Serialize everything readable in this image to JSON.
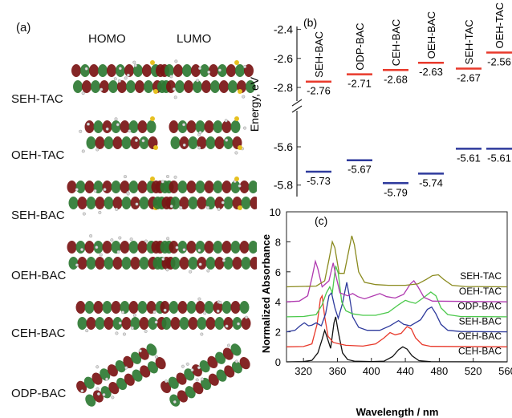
{
  "panel_a": {
    "label": "(a)",
    "col_headers": [
      "HOMO",
      "LUMO"
    ],
    "rows": [
      "SEH-TAC",
      "OEH-TAC",
      "SEH-BAC",
      "OEH-BAC",
      "CEH-BAC",
      "ODP-BAC"
    ]
  },
  "chart_data": [
    {
      "type": "scatter",
      "panel_label": "(b)",
      "ylabel": "Energy, eV",
      "upper_axis": {
        "ylim": [
          -2.85,
          -2.38
        ],
        "ticks": [
          -2.4,
          -2.6,
          -2.8
        ]
      },
      "lower_axis": {
        "ylim": [
          -5.86,
          -5.47
        ],
        "ticks": [
          -5.6,
          -5.8
        ]
      },
      "categories": [
        "SEH-BAC",
        "ODP-BAC",
        "CEH-BAC",
        "OEH-BAC",
        "SEH-TAC",
        "OEH-TAC"
      ],
      "series": [
        {
          "role": "LUMO",
          "color": "#e8392b",
          "values": [
            -2.76,
            -2.71,
            -2.68,
            -2.63,
            -2.67,
            -2.56
          ],
          "labels": [
            "-2.76",
            "-2.71",
            "-2.68",
            "-2.63",
            "-2.67",
            "-2.56"
          ]
        },
        {
          "role": "HOMO",
          "color": "#2e3a9c",
          "values": [
            -5.73,
            -5.67,
            -5.79,
            -5.74,
            -5.61,
            -5.61
          ],
          "labels": [
            "-5.73",
            "-5.67",
            "-5.79",
            "-5.74",
            "-5.61",
            "-5.61"
          ]
        }
      ]
    },
    {
      "type": "line",
      "panel_label": "(c)",
      "xlabel": "Wavelength / nm",
      "ylabel": "Normalized Absorbance",
      "xlim": [
        300,
        560
      ],
      "ylim": [
        0,
        10
      ],
      "xticks": [
        320,
        360,
        400,
        440,
        480,
        520,
        560
      ],
      "yticks": [
        0,
        2,
        4,
        6,
        8,
        10
      ],
      "series": [
        {
          "name": "CEH-BAC",
          "color": "#111111",
          "offset": 0,
          "points": [
            [
              300,
              0
            ],
            [
              320,
              0.02
            ],
            [
              330,
              0.1
            ],
            [
              337,
              0.6
            ],
            [
              342,
              1.5
            ],
            [
              345,
              2.1
            ],
            [
              348,
              1.6
            ],
            [
              352,
              0.9
            ],
            [
              356,
              2.6
            ],
            [
              358,
              3.0
            ],
            [
              361,
              2.0
            ],
            [
              366,
              0.6
            ],
            [
              372,
              0.15
            ],
            [
              380,
              0.05
            ],
            [
              400,
              0.02
            ],
            [
              415,
              0.05
            ],
            [
              425,
              0.35
            ],
            [
              432,
              0.8
            ],
            [
              437,
              1.0
            ],
            [
              442,
              0.85
            ],
            [
              448,
              0.4
            ],
            [
              456,
              0.08
            ],
            [
              470,
              0.01
            ],
            [
              560,
              0
            ]
          ]
        },
        {
          "name": "OEH-BAC",
          "color": "#e8392b",
          "offset": 1,
          "points": [
            [
              300,
              0
            ],
            [
              320,
              0.02
            ],
            [
              330,
              0.2
            ],
            [
              336,
              1.5
            ],
            [
              340,
              3.2
            ],
            [
              342,
              3.4
            ],
            [
              345,
              2.0
            ],
            [
              349,
              0.7
            ],
            [
              355,
              0.3
            ],
            [
              362,
              0.2
            ],
            [
              370,
              0.1
            ],
            [
              390,
              0.05
            ],
            [
              405,
              0.2
            ],
            [
              415,
              0.6
            ],
            [
              422,
              0.95
            ],
            [
              428,
              0.8
            ],
            [
              435,
              0.9
            ],
            [
              442,
              1.35
            ],
            [
              447,
              1.2
            ],
            [
              452,
              0.6
            ],
            [
              460,
              0.15
            ],
            [
              470,
              0.03
            ],
            [
              560,
              0
            ]
          ]
        },
        {
          "name": "SEH-BAC",
          "color": "#2e3a9c",
          "offset": 2,
          "points": [
            [
              300,
              0
            ],
            [
              310,
              0.1
            ],
            [
              316,
              0.4
            ],
            [
              321,
              0.6
            ],
            [
              326,
              0.4
            ],
            [
              330,
              0.45
            ],
            [
              335,
              0.6
            ],
            [
              341,
              0.4
            ],
            [
              346,
              1.2
            ],
            [
              350,
              2.4
            ],
            [
              353,
              2.6
            ],
            [
              357,
              1.6
            ],
            [
              361,
              0.9
            ],
            [
              366,
              1.9
            ],
            [
              371,
              3.3
            ],
            [
              374,
              2.4
            ],
            [
              378,
              1.0
            ],
            [
              385,
              0.3
            ],
            [
              395,
              0.1
            ],
            [
              410,
              0.1
            ],
            [
              422,
              0.4
            ],
            [
              432,
              0.75
            ],
            [
              438,
              0.5
            ],
            [
              446,
              0.4
            ],
            [
              458,
              0.8
            ],
            [
              466,
              1.5
            ],
            [
              471,
              1.65
            ],
            [
              476,
              1.2
            ],
            [
              482,
              0.5
            ],
            [
              490,
              0.1
            ],
            [
              505,
              0.02
            ],
            [
              560,
              0
            ]
          ]
        },
        {
          "name": "ODP-BAC",
          "color": "#4cc94c",
          "offset": 3,
          "points": [
            [
              300,
              0
            ],
            [
              320,
              0.02
            ],
            [
              335,
              0.15
            ],
            [
              342,
              0.8
            ],
            [
              347,
              1.6
            ],
            [
              351,
              2.0
            ],
            [
              354,
              1.6
            ],
            [
              358,
              3.4
            ],
            [
              361,
              2.9
            ],
            [
              365,
              1.0
            ],
            [
              370,
              0.4
            ],
            [
              378,
              0.2
            ],
            [
              390,
              0.1
            ],
            [
              405,
              0.1
            ],
            [
              420,
              0.3
            ],
            [
              432,
              0.8
            ],
            [
              440,
              1.1
            ],
            [
              445,
              1.0
            ],
            [
              452,
              0.9
            ],
            [
              462,
              1.3
            ],
            [
              470,
              1.65
            ],
            [
              476,
              1.4
            ],
            [
              482,
              0.6
            ],
            [
              490,
              0.15
            ],
            [
              505,
              0.02
            ],
            [
              560,
              0
            ]
          ]
        },
        {
          "name": "OEH-TAC",
          "color": "#b03ab0",
          "offset": 4,
          "points": [
            [
              300,
              0
            ],
            [
              315,
              0.05
            ],
            [
              325,
              0.4
            ],
            [
              330,
              1.6
            ],
            [
              334,
              2.7
            ],
            [
              337,
              2.2
            ],
            [
              342,
              1.0
            ],
            [
              350,
              1.4
            ],
            [
              355,
              2.6
            ],
            [
              358,
              1.8
            ],
            [
              363,
              0.6
            ],
            [
              372,
              0.4
            ],
            [
              378,
              0.55
            ],
            [
              384,
              0.35
            ],
            [
              392,
              0.2
            ],
            [
              405,
              0.45
            ],
            [
              410,
              0.55
            ],
            [
              418,
              0.35
            ],
            [
              428,
              0.25
            ],
            [
              438,
              0.5
            ],
            [
              446,
              1.2
            ],
            [
              450,
              1.4
            ],
            [
              455,
              1.0
            ],
            [
              462,
              0.3
            ],
            [
              472,
              0.05
            ],
            [
              560,
              0
            ]
          ]
        },
        {
          "name": "SEH-TAC",
          "color": "#8a8a1e",
          "offset": 5,
          "points": [
            [
              300,
              0
            ],
            [
              335,
              0.05
            ],
            [
              345,
              0.4
            ],
            [
              350,
              1.8
            ],
            [
              354,
              3.0
            ],
            [
              357,
              2.6
            ],
            [
              362,
              0.9
            ],
            [
              368,
              0.9
            ],
            [
              373,
              2.3
            ],
            [
              377,
              3.4
            ],
            [
              380,
              2.8
            ],
            [
              385,
              1.0
            ],
            [
              392,
              0.3
            ],
            [
              405,
              0.15
            ],
            [
              420,
              0.1
            ],
            [
              440,
              0.1
            ],
            [
              455,
              0.2
            ],
            [
              465,
              0.5
            ],
            [
              472,
              0.75
            ],
            [
              479,
              0.8
            ],
            [
              485,
              0.5
            ],
            [
              495,
              0.1
            ],
            [
              510,
              0.02
            ],
            [
              560,
              0
            ]
          ]
        }
      ]
    }
  ]
}
